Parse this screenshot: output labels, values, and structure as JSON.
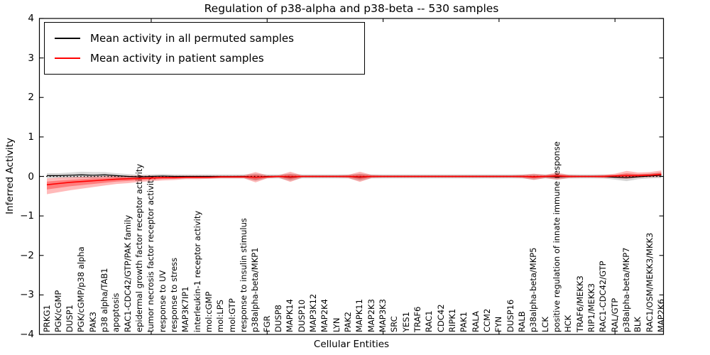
{
  "chart_data": {
    "type": "line",
    "title": "Regulation of p38-alpha and p38-beta -- 530 samples",
    "xlabel": "Cellular Entities",
    "ylabel": "Inferred Activity",
    "ylim": [
      -4,
      4
    ],
    "yticks": [
      4,
      3,
      2,
      1,
      0,
      -1,
      -2,
      -3,
      -4
    ],
    "grid": false,
    "legend_position": "upper left",
    "zero_line_style": "dotted",
    "categories": [
      "PRKG1",
      "PGK/cGMP",
      "DUSP1",
      "PGK/cGMP/p38 alpha",
      "PAK3",
      "p38 alpha/TAB1",
      "apoptosis",
      "RAC1-CDC42/GTP/PAK family",
      "epidermal growth factor receptor activity",
      "tumor necrosis factor receptor activity",
      "response to UV",
      "response to stress",
      "MAP3K7IP1",
      "interleukin-1 receptor activity",
      "mol:cGMP",
      "mol:LPS",
      "mol:GTP",
      "response to insulin stimulus",
      "p38alpha-beta/MKP1",
      "FGR",
      "DUSP8",
      "MAPK14",
      "DUSP10",
      "MAP3K12",
      "MAP2K4",
      "LYN",
      "PAK2",
      "MAPK11",
      "MAP2K3",
      "MAP3K3",
      "SRC",
      "YES1",
      "TRAF6",
      "RAC1",
      "CDC42",
      "RIPK1",
      "PAK1",
      "RALA",
      "CCM2",
      "FYN",
      "DUSP16",
      "RALB",
      "p38alpha-beta/MKP5",
      "LCK",
      "positive regulation of innate immune response",
      "HCK",
      "TRAF6/MEKK3",
      "RIP1/MEKK3",
      "RAC1-CDC42/GTP",
      "RAL/GTP",
      "p38alpha-beta/MKP7",
      "BLK",
      "RAC1/OSM/MEKK3/MKK3",
      "MAP2K6"
    ],
    "series": [
      {
        "name": "Mean activity in all permuted samples",
        "color": "#000000",
        "band_color": "#000000",
        "values": [
          0.02,
          0.02,
          0.03,
          0.04,
          0.03,
          0.04,
          0.02,
          0.0,
          -0.01,
          0.0,
          0.01,
          0.0,
          0.0,
          0.0,
          0.0,
          0.0,
          0.0,
          0.0,
          -0.02,
          0.0,
          0.0,
          -0.02,
          0.0,
          0.0,
          0.0,
          0.0,
          0.0,
          -0.02,
          0.0,
          0.0,
          0.0,
          0.0,
          0.0,
          0.0,
          0.0,
          0.0,
          0.0,
          0.0,
          0.0,
          0.0,
          0.0,
          0.0,
          -0.01,
          0.0,
          -0.01,
          0.0,
          0.0,
          0.0,
          0.0,
          -0.02,
          -0.03,
          -0.01,
          0.01,
          0.03
        ],
        "band_upper_halfwidth": [
          0.06,
          0.06,
          0.07,
          0.08,
          0.08,
          0.07,
          0.06,
          0.06,
          0.05,
          0.05,
          0.05,
          0.05,
          0.05,
          0.05,
          0.05,
          0.05,
          0.05,
          0.05,
          0.09,
          0.05,
          0.05,
          0.09,
          0.05,
          0.05,
          0.05,
          0.05,
          0.05,
          0.09,
          0.05,
          0.05,
          0.05,
          0.05,
          0.05,
          0.05,
          0.05,
          0.05,
          0.05,
          0.05,
          0.05,
          0.05,
          0.05,
          0.05,
          0.07,
          0.05,
          0.07,
          0.05,
          0.05,
          0.05,
          0.05,
          0.06,
          0.09,
          0.06,
          0.06,
          0.07
        ],
        "band_lower_halfwidth": [
          0.06,
          0.06,
          0.07,
          0.08,
          0.08,
          0.07,
          0.06,
          0.06,
          0.05,
          0.05,
          0.05,
          0.05,
          0.05,
          0.05,
          0.05,
          0.05,
          0.05,
          0.05,
          0.09,
          0.05,
          0.05,
          0.09,
          0.05,
          0.05,
          0.05,
          0.05,
          0.05,
          0.09,
          0.05,
          0.05,
          0.05,
          0.05,
          0.05,
          0.05,
          0.05,
          0.05,
          0.05,
          0.05,
          0.05,
          0.05,
          0.05,
          0.05,
          0.07,
          0.05,
          0.07,
          0.05,
          0.05,
          0.05,
          0.05,
          0.06,
          0.09,
          0.06,
          0.06,
          0.07
        ]
      },
      {
        "name": "Mean activity in patient samples",
        "color": "#ff0000",
        "band_color": "#ff0000",
        "values": [
          -0.21,
          -0.18,
          -0.15,
          -0.13,
          -0.11,
          -0.09,
          -0.07,
          -0.06,
          -0.05,
          -0.04,
          -0.03,
          -0.03,
          -0.02,
          -0.02,
          -0.02,
          -0.01,
          -0.01,
          -0.01,
          -0.02,
          -0.01,
          0.0,
          -0.01,
          0.0,
          0.0,
          0.0,
          0.0,
          0.0,
          -0.01,
          0.0,
          0.0,
          0.0,
          0.0,
          0.0,
          0.0,
          0.0,
          0.0,
          0.0,
          0.0,
          0.0,
          0.0,
          0.0,
          0.0,
          -0.01,
          0.0,
          0.01,
          0.0,
          0.0,
          0.0,
          0.0,
          0.01,
          0.02,
          0.02,
          0.03,
          0.05
        ],
        "band_upper_halfwidth": [
          0.16,
          0.15,
          0.13,
          0.12,
          0.11,
          0.1,
          0.09,
          0.08,
          0.07,
          0.06,
          0.05,
          0.05,
          0.04,
          0.04,
          0.04,
          0.03,
          0.03,
          0.04,
          0.13,
          0.04,
          0.03,
          0.13,
          0.03,
          0.03,
          0.03,
          0.03,
          0.04,
          0.13,
          0.04,
          0.03,
          0.03,
          0.03,
          0.03,
          0.03,
          0.03,
          0.03,
          0.03,
          0.03,
          0.03,
          0.03,
          0.03,
          0.04,
          0.08,
          0.04,
          0.09,
          0.04,
          0.03,
          0.03,
          0.04,
          0.06,
          0.12,
          0.08,
          0.08,
          0.1
        ],
        "band_lower_halfwidth": [
          0.24,
          0.22,
          0.2,
          0.18,
          0.16,
          0.14,
          0.12,
          0.11,
          0.09,
          0.08,
          0.07,
          0.06,
          0.05,
          0.05,
          0.04,
          0.04,
          0.04,
          0.04,
          0.13,
          0.04,
          0.03,
          0.13,
          0.03,
          0.03,
          0.03,
          0.03,
          0.04,
          0.13,
          0.04,
          0.03,
          0.03,
          0.03,
          0.03,
          0.03,
          0.03,
          0.03,
          0.03,
          0.03,
          0.03,
          0.03,
          0.03,
          0.04,
          0.08,
          0.04,
          0.09,
          0.04,
          0.03,
          0.03,
          0.04,
          0.05,
          0.08,
          0.05,
          0.05,
          0.06
        ]
      }
    ]
  }
}
